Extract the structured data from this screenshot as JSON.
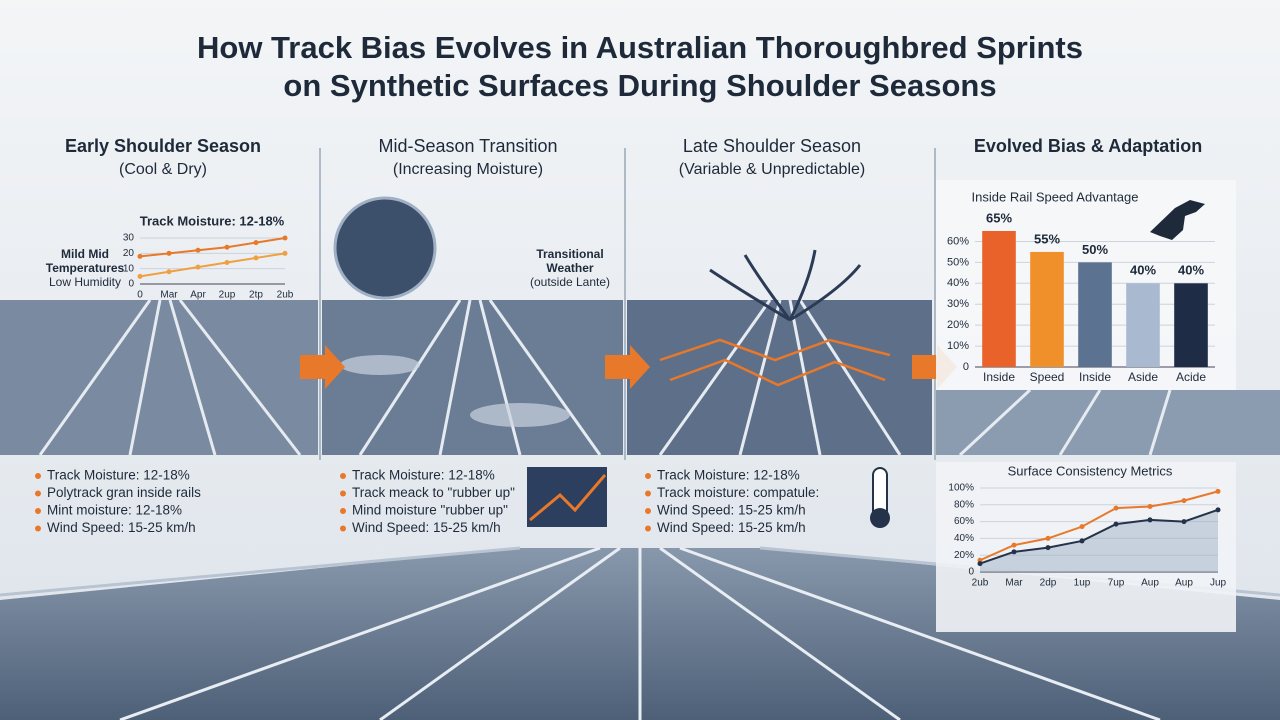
{
  "title_lines": [
    "How Track Bias Evolves in Australian Thoroughbred Sprints",
    "on Synthetic Surfaces During Shoulder Seasons"
  ],
  "panels": [
    {
      "heading": "Early Shoulder Season",
      "subheading": "(Cool & Dry)",
      "notes": [
        "Mild Mid",
        "Temperatures",
        "Low Humidity"
      ],
      "bullets": [
        "Track Moisture: 12-18%",
        "Polytrack gran inside rails",
        "Mint moisture: 12-18%",
        "Wind Speed: 15-25 km/h"
      ]
    },
    {
      "heading": "Mid-Season Transition",
      "subheading": "(Increasing Moisture)",
      "notes": [
        "Transitional",
        "Weather",
        "(outside Lante)"
      ],
      "bullets": [
        "Track Moisture: 12-18%",
        "Track meack to \"rubber up\"",
        "Mind moisture \"rubber up\"",
        "Wind Speed: 15-25 km/h"
      ]
    },
    {
      "heading": "Late Shoulder Season",
      "subheading": "(Variable & Unpredictable)",
      "notes": [],
      "bullets": [
        "Track Moisture: 12-18%",
        "Track moisture: compatule:",
        "Wind Speed: 15-25 km/h",
        "Wind Speed: 15-25 km/h"
      ]
    },
    {
      "heading": "Evolved Bias & Adaptation",
      "subheading": null,
      "notes": [],
      "bullets": []
    }
  ],
  "chart_data": [
    {
      "type": "line",
      "title": "Track Moisture: 12-18%",
      "categories": [
        "0",
        "Mar",
        "Apr",
        "2up",
        "2tp",
        "2ub"
      ],
      "series": [
        {
          "color": "#e8782a",
          "values": [
            18,
            20,
            22,
            24,
            27,
            30
          ]
        },
        {
          "color": "#f0a040",
          "values": [
            5,
            8,
            11,
            14,
            17,
            20
          ]
        }
      ],
      "ylim": [
        0,
        30
      ],
      "yticks": [
        0,
        10,
        20,
        30
      ],
      "grid": true
    },
    {
      "type": "bar",
      "title": "Inside Rail Speed Advantage",
      "categories": [
        "Inside",
        "Speed",
        "Inside",
        "Aside",
        "Acide"
      ],
      "values": [
        65,
        55,
        50,
        40,
        40
      ],
      "value_labels": [
        "65%",
        "55%",
        "50%",
        "40%",
        "40%"
      ],
      "colors": [
        "#e8622a",
        "#f0902a",
        "#5b7290",
        "#a9bad0",
        "#1e2c45"
      ],
      "ylim": [
        0,
        65
      ],
      "yticks": [
        0,
        {
          "value": 10,
          "label": "10%"
        },
        {
          "value": 20,
          "label": "20%"
        },
        {
          "value": 30,
          "label": "30%"
        },
        {
          "value": 40,
          "label": "40%"
        },
        {
          "value": 50,
          "label": "50%"
        },
        {
          "value": 60,
          "label": "60%"
        }
      ],
      "grid": true
    },
    {
      "type": "line",
      "title": "Surface Consistency Metrics",
      "categories": [
        "2ub",
        "Mar",
        "2dp",
        "1up",
        "7up",
        "Aup",
        "Aup",
        "Jup"
      ],
      "series": [
        {
          "color": "#e8782a",
          "values": [
            14,
            32,
            40,
            54,
            76,
            78,
            85,
            96
          ]
        },
        {
          "color": "#24324a",
          "values": [
            10,
            24,
            29,
            37,
            57,
            62,
            60,
            74
          ]
        }
      ],
      "ylim": [
        0,
        100
      ],
      "yticks": [
        0,
        {
          "value": 20,
          "label": "20%"
        },
        {
          "value": 40,
          "label": "40%"
        },
        {
          "value": 60,
          "label": "60%"
        },
        {
          "value": 80,
          "label": "80%"
        },
        {
          "value": 100,
          "label": "100%"
        }
      ],
      "grid": true
    }
  ]
}
